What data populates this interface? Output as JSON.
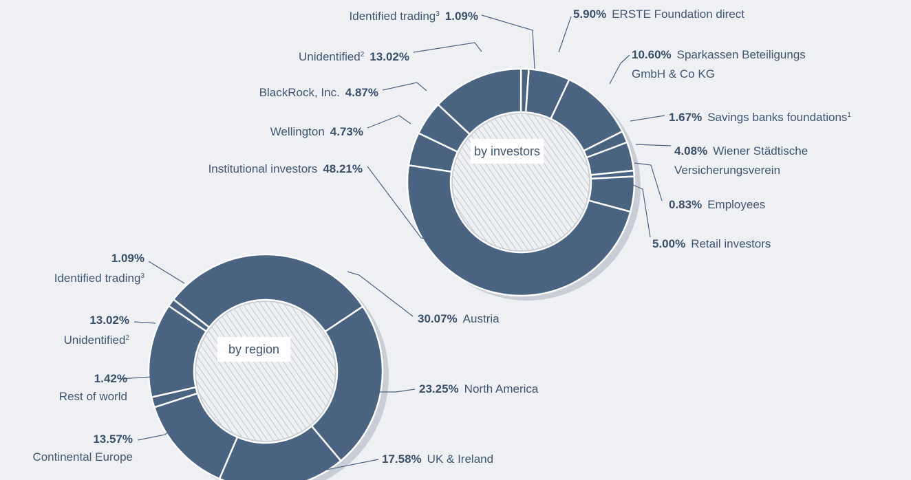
{
  "chart_data": [
    {
      "type": "donut",
      "center_label": "by investors",
      "color": "#4a6380",
      "categories": [
        "ERSTE Foundation direct",
        "Sparkassen Beteiligungs GmbH & Co KG",
        "Savings banks foundations",
        "Wiener Städtische Versicherungsverein",
        "Employees",
        "Retail investors",
        "Institutional investors",
        "Wellington",
        "BlackRock, Inc.",
        "Unidentified",
        "Identified trading"
      ],
      "footnotes": [
        null,
        null,
        "1",
        null,
        null,
        null,
        null,
        null,
        null,
        "2",
        "3"
      ],
      "values": [
        5.9,
        10.6,
        1.67,
        4.08,
        0.83,
        5.0,
        48.21,
        4.73,
        4.87,
        13.02,
        1.09
      ],
      "value_labels": [
        "5.90%",
        "10.60%",
        "1.67%",
        "4.08%",
        "0.83%",
        "5.00%",
        "48.21%",
        "4.73%",
        "4.87%",
        "13.02%",
        "1.09%"
      ]
    },
    {
      "type": "donut",
      "center_label": "by region",
      "color": "#4a6380",
      "categories": [
        "Austria",
        "North America",
        "UK & Ireland",
        "Continental Europe",
        "Rest of world",
        "Unidentified",
        "Identified trading"
      ],
      "footnotes": [
        null,
        null,
        null,
        null,
        null,
        "2",
        "3"
      ],
      "values": [
        30.07,
        23.25,
        17.58,
        13.57,
        1.42,
        13.02,
        1.09
      ],
      "value_labels": [
        "30.07%",
        "23.25%",
        "17.58%",
        "13.57%",
        "1.42%",
        "13.02%",
        "1.09%"
      ]
    }
  ]
}
